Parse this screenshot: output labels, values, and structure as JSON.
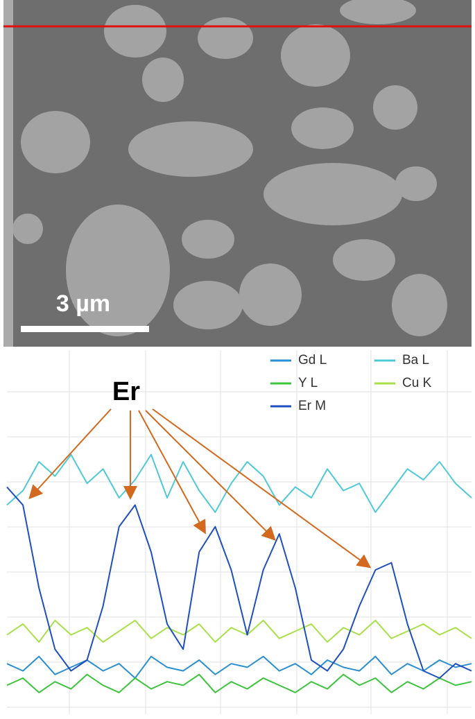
{
  "image": {
    "scale_bar": "3 µm"
  },
  "chart_data": {
    "type": "line",
    "annotation": "Er",
    "ylim": [
      0,
      100
    ],
    "series": [
      {
        "name": "Gd L",
        "color": "#2a8fd0",
        "values": [
          14,
          12,
          16,
          11,
          13,
          15,
          12,
          14,
          10,
          16,
          13,
          12,
          15,
          11,
          14,
          13,
          16,
          12,
          14,
          11,
          15,
          13,
          12,
          16,
          11,
          14,
          12,
          15,
          13,
          14
        ]
      },
      {
        "name": "Ba L",
        "color": "#4fc8d8",
        "values": [
          58,
          62,
          70,
          66,
          72,
          64,
          68,
          60,
          65,
          72,
          60,
          70,
          62,
          56,
          64,
          70,
          66,
          58,
          63,
          60,
          68,
          62,
          64,
          56,
          62,
          68,
          65,
          70,
          64,
          60
        ]
      },
      {
        "name": "Y L",
        "color": "#3cc43c",
        "values": [
          8,
          10,
          6,
          9,
          7,
          11,
          8,
          6,
          10,
          7,
          9,
          8,
          11,
          6,
          9,
          7,
          10,
          8,
          6,
          9,
          7,
          11,
          8,
          10,
          6,
          9,
          7,
          10,
          8,
          9
        ]
      },
      {
        "name": "Cu K",
        "color": "#a8e04a",
        "values": [
          22,
          25,
          20,
          26,
          22,
          24,
          20,
          23,
          26,
          21,
          24,
          22,
          25,
          20,
          24,
          22,
          26,
          21,
          23,
          25,
          20,
          24,
          22,
          26,
          21,
          23,
          25,
          22,
          24,
          21
        ]
      },
      {
        "name": "Er M",
        "color": "#1f4fbf",
        "values": [
          63,
          58,
          35,
          18,
          12,
          15,
          30,
          52,
          58,
          45,
          25,
          18,
          45,
          52,
          40,
          22,
          40,
          50,
          35,
          15,
          12,
          18,
          30,
          40,
          42,
          25,
          12,
          10,
          14,
          12
        ]
      }
    ]
  }
}
